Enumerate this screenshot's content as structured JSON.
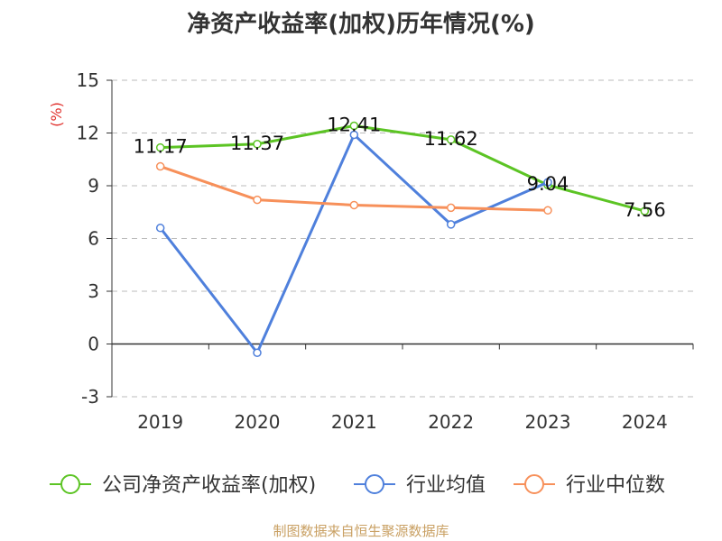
{
  "chart_data": {
    "type": "line",
    "title": "净资产收益率(加权)历年情况(%)",
    "ylabel": "(%)",
    "categories": [
      "2019",
      "2020",
      "2021",
      "2022",
      "2023",
      "2024"
    ],
    "ylim": [
      -3,
      15
    ],
    "yticks": [
      -3,
      0,
      3,
      6,
      9,
      12,
      15
    ],
    "grid": true,
    "legend_position": "bottom",
    "series": [
      {
        "name": "公司净资产收益率(加权)",
        "color": "#5cc424",
        "values": [
          11.17,
          11.37,
          12.41,
          11.62,
          9.04,
          7.56
        ],
        "labels": [
          "11.17",
          "11.37",
          "12.41",
          "11.62",
          "9.04",
          "7.56"
        ]
      },
      {
        "name": "行业均值",
        "color": "#4f80dc",
        "values": [
          6.6,
          -0.5,
          11.9,
          6.8,
          9.2,
          null
        ]
      },
      {
        "name": "行业中位数",
        "color": "#f7905a",
        "values": [
          10.1,
          8.2,
          7.9,
          7.75,
          7.6,
          null
        ]
      }
    ]
  },
  "source": "制图数据来自恒生聚源数据库"
}
